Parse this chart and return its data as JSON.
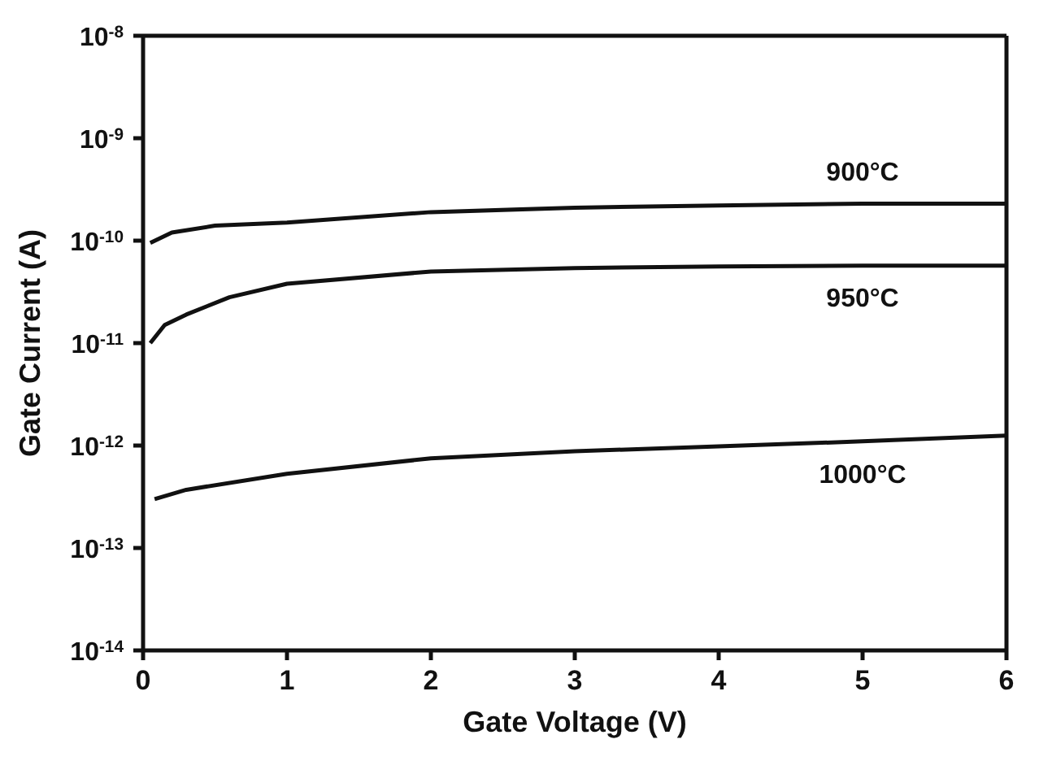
{
  "chart_data": {
    "type": "line",
    "xlabel": "Gate Voltage (V)",
    "ylabel": "Gate Current (A)",
    "log": "y",
    "legend": false,
    "marker": "none",
    "line_style": "solid",
    "xlim": [
      0,
      6
    ],
    "xticks": [
      0,
      1,
      2,
      3,
      4,
      5,
      6
    ],
    "ylim": [
      1e-14,
      1e-08
    ],
    "yticks": [
      {
        "value": 1e-14,
        "label": "10$^{-14}$"
      },
      {
        "value": 1e-13,
        "label": "10$^{-13}$"
      },
      {
        "value": 1e-12,
        "label": "10$^{-12}$"
      },
      {
        "value": 1e-11,
        "label": "10$^{-11}$"
      },
      {
        "value": 1e-10,
        "label": "10$^{-10}$"
      },
      {
        "value": 1e-09,
        "label": "10$^{-9}$"
      },
      {
        "value": 1e-08,
        "label": "10$^{-8}$"
      }
    ],
    "series": [
      {
        "color": "#111111",
        "x": [
          0.05,
          0.2,
          0.5,
          1,
          2,
          3,
          4,
          5,
          6
        ],
        "values": [
          9.5e-11,
          1.2e-10,
          1.4e-10,
          1.5e-10,
          1.9e-10,
          2.1e-10,
          2.2e-10,
          2.3e-10,
          2.3e-10
        ]
      },
      {
        "color": "#111111",
        "x": [
          0.05,
          0.15,
          0.3,
          0.6,
          1,
          2,
          3,
          4,
          5,
          6
        ],
        "values": [
          1e-11,
          1.5e-11,
          1.9e-11,
          2.8e-11,
          3.8e-11,
          5e-11,
          5.4e-11,
          5.6e-11,
          5.7e-11,
          5.7e-11
        ]
      },
      {
        "color": "#111111",
        "x": [
          0.08,
          0.3,
          1,
          2,
          3,
          4,
          5,
          6
        ],
        "values": [
          3e-13,
          3.7e-13,
          5.3e-13,
          7.5e-13,
          8.8e-13,
          9.8e-13,
          1.1e-12,
          1.25e-12
        ]
      }
    ],
    "annotations": [
      "900°C",
      "950°C",
      "1000°C"
    ]
  }
}
